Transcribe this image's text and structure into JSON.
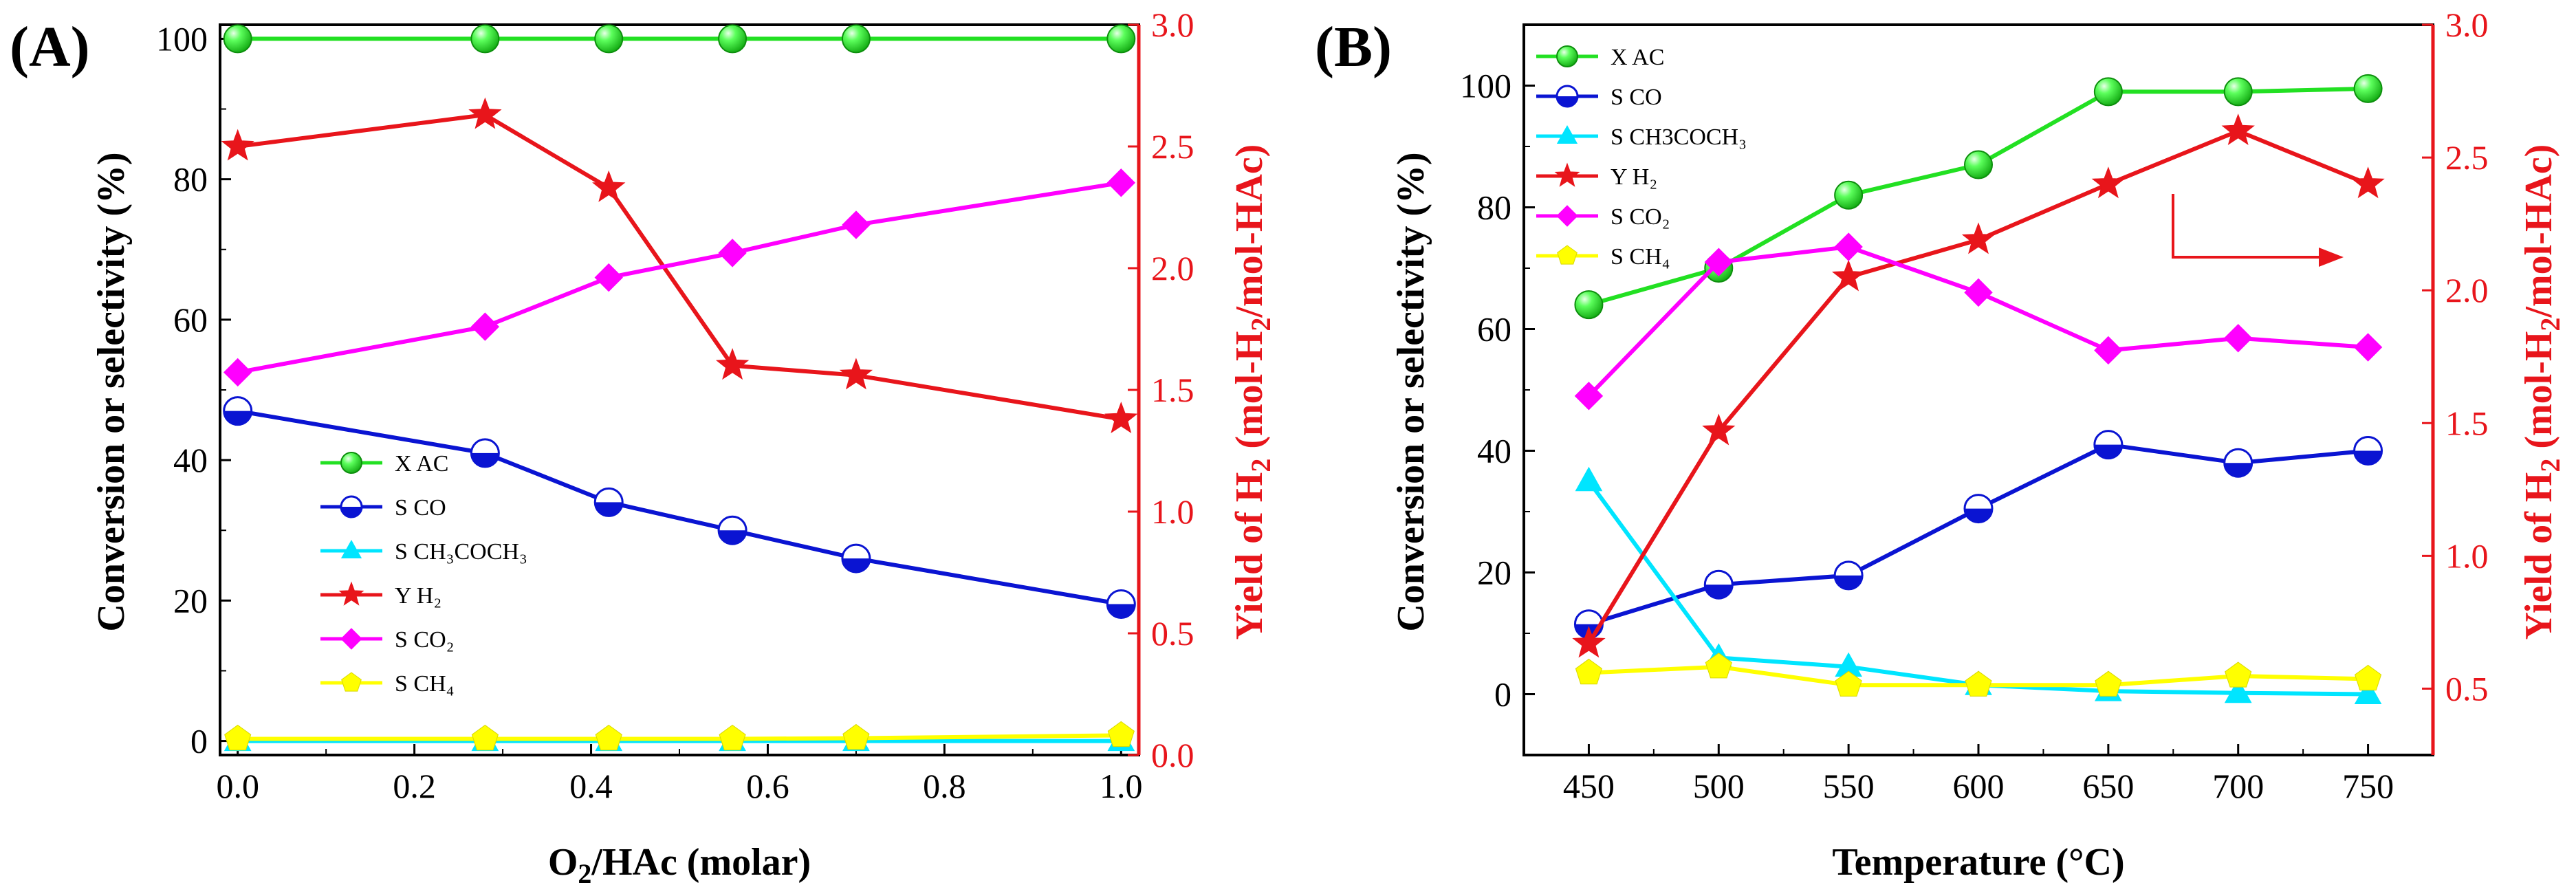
{
  "chart_data": [
    {
      "type": "line",
      "panel_label": "(A)",
      "xlabel": "O2/HAc (molar)",
      "ylabel": "Conversion or selectivity (%)",
      "y2label": "Yield of H2 (mol-H2/mol-HAc)",
      "xlim": [
        -0.02,
        1.02
      ],
      "ylim": [
        -2,
        102
      ],
      "y2lim": [
        0.0,
        3.0
      ],
      "x_ticks": [
        "0.0",
        "0.2",
        "0.4",
        "0.6",
        "0.8",
        "1.0"
      ],
      "y_ticks": [
        "0",
        "20",
        "40",
        "60",
        "80",
        "100"
      ],
      "y2_ticks": [
        "0.0",
        "0.5",
        "1.0",
        "1.5",
        "2.0",
        "2.5",
        "3.0"
      ],
      "legend_position": "lower-left",
      "x": [
        0.0,
        0.28,
        0.42,
        0.56,
        0.7,
        1.0
      ],
      "series": [
        {
          "name": "X AC",
          "legend_label": "X AC",
          "axis": "left",
          "color": "#22e022",
          "marker": "sphere",
          "values": [
            100,
            100,
            100,
            100,
            100,
            100
          ]
        },
        {
          "name": "S CO",
          "legend_label": "S CO",
          "axis": "left",
          "color": "#0a14d2",
          "marker": "half-circle",
          "values": [
            47,
            41,
            34,
            30,
            26,
            19.5
          ]
        },
        {
          "name": "S CH3COCH3",
          "legend_label": "S CH₃COCH₃",
          "axis": "left",
          "color": "#00e5ff",
          "marker": "triangle",
          "values": [
            0,
            0,
            0,
            0,
            0,
            0
          ]
        },
        {
          "name": "Y H2",
          "legend_label": "Y H₂",
          "axis": "right",
          "color": "#e8151b",
          "marker": "star",
          "values": [
            2.5,
            2.63,
            2.33,
            1.6,
            1.56,
            1.38
          ]
        },
        {
          "name": "S CO2",
          "legend_label": "S CO₂",
          "axis": "left",
          "color": "#ff00ff",
          "marker": "diamond",
          "values": [
            52.5,
            59,
            66,
            69.5,
            73.5,
            79.5
          ]
        },
        {
          "name": "S CH4",
          "legend_label": "S CH₄",
          "axis": "left",
          "color": "#ffff00",
          "marker": "pentagon",
          "values": [
            0.3,
            0.3,
            0.3,
            0.3,
            0.4,
            0.8
          ]
        }
      ]
    },
    {
      "type": "line",
      "panel_label": "(B)",
      "xlabel": "Temperature (°C)",
      "ylabel": "Conversion or selectivity (%)",
      "y2label": "Yield of H2 (mol-H2/mol-HAc)",
      "xlim": [
        425,
        775
      ],
      "ylim": [
        -10,
        110
      ],
      "y2lim": [
        0.25,
        3.0
      ],
      "x_ticks": [
        "450",
        "500",
        "550",
        "600",
        "650",
        "700",
        "750"
      ],
      "y_ticks": [
        "0",
        "20",
        "40",
        "60",
        "80",
        "100"
      ],
      "y2_ticks": [
        "0.5",
        "1.0",
        "1.5",
        "2.0",
        "2.5",
        "3.0"
      ],
      "legend_position": "top-left",
      "annotation": "arrow pointing to right axis",
      "x": [
        450,
        500,
        550,
        600,
        650,
        700,
        750
      ],
      "series": [
        {
          "name": "X AC",
          "legend_label": "X AC",
          "axis": "left",
          "color": "#22e022",
          "marker": "sphere",
          "values": [
            64,
            70,
            82,
            87,
            99,
            99,
            99.5
          ]
        },
        {
          "name": "S CO",
          "legend_label": "S CO",
          "axis": "left",
          "color": "#0a14d2",
          "marker": "half-circle",
          "values": [
            11.5,
            18,
            19.5,
            30.5,
            41,
            38,
            40
          ]
        },
        {
          "name": "S CH3COCH3",
          "legend_label": "S CH3COCH₃",
          "axis": "left",
          "color": "#00e5ff",
          "marker": "triangle",
          "values": [
            35,
            6,
            4.5,
            1.5,
            0.5,
            0.2,
            0
          ]
        },
        {
          "name": "Y H2",
          "legend_label": "Y H₂",
          "axis": "right",
          "color": "#e8151b",
          "marker": "star",
          "values": [
            0.67,
            1.47,
            2.05,
            2.19,
            2.4,
            2.6,
            2.4
          ]
        },
        {
          "name": "S CO2",
          "legend_label": "S CO₂",
          "axis": "left",
          "color": "#ff00ff",
          "marker": "diamond",
          "values": [
            49,
            71,
            73.5,
            66,
            56.5,
            58.5,
            57
          ]
        },
        {
          "name": "S CH4",
          "legend_label": "S CH₄",
          "axis": "left",
          "color": "#ffff00",
          "marker": "pentagon",
          "values": [
            3.5,
            4.5,
            1.5,
            1.5,
            1.5,
            3,
            2.5
          ]
        }
      ]
    }
  ]
}
